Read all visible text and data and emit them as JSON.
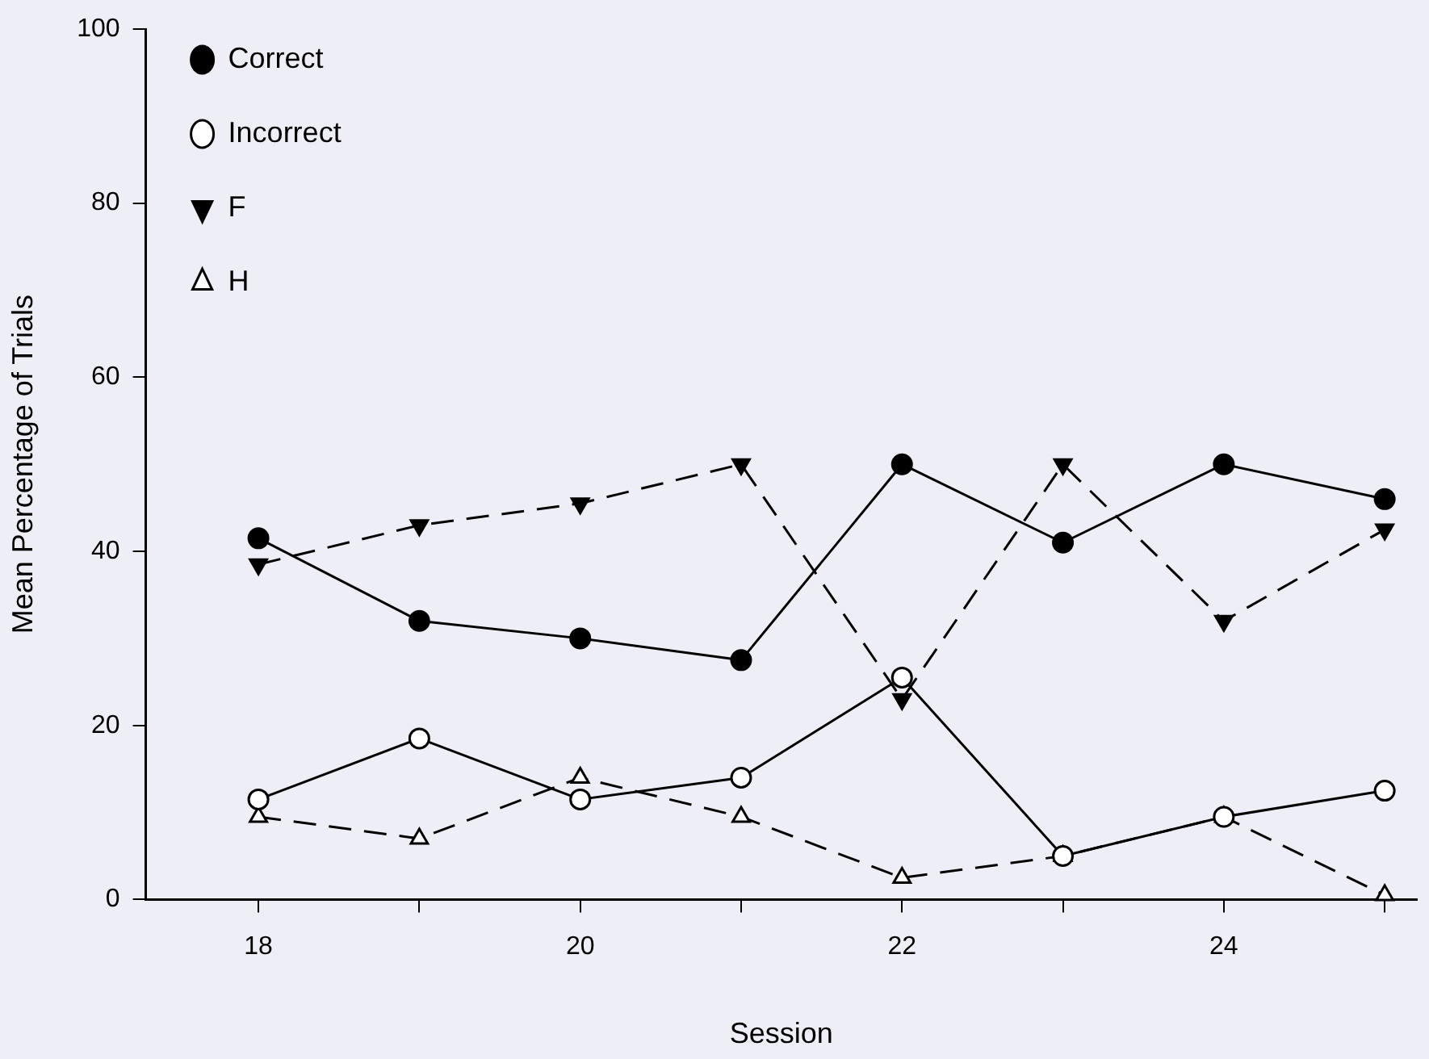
{
  "chart_data": {
    "type": "line",
    "xlabel": "Session",
    "ylabel": "Mean Percentage of Trials",
    "x": [
      18,
      19,
      20,
      21,
      22,
      23,
      24,
      25
    ],
    "series": [
      {
        "name": "Correct",
        "color": "#000000",
        "marker": "circle",
        "line_style": "solid",
        "values": [
          41.5,
          32,
          30,
          27.5,
          50,
          41,
          50,
          46
        ]
      },
      {
        "name": "Incorrect",
        "color": "#000000",
        "colors": [
          "#ffffff",
          "#ffffff",
          "#ffffff",
          "#ffffff",
          "#ffffff",
          "#ffffff",
          "#ffffff",
          "#ffffff"
        ],
        "marker": "circle",
        "line_style": "solid",
        "values": [
          11.5,
          18.5,
          11.5,
          14,
          25.5,
          5,
          9.5,
          12.5
        ]
      },
      {
        "name": "F",
        "color": "#000000",
        "marker": "triangle_down",
        "line_style": "dashed",
        "values": [
          38.5,
          43,
          45.5,
          50,
          23,
          50,
          32,
          42.5
        ]
      },
      {
        "name": "H",
        "color": "#000000",
        "colors": [
          "#ffffff",
          "#ffffff",
          "#ffffff",
          "#ffffff",
          "#ffffff",
          "#ffffff",
          "#ffffff",
          "#ffffff"
        ],
        "marker": "triangle",
        "line_style": "dashed",
        "values": [
          9.5,
          7,
          14,
          9.5,
          2.5,
          5,
          9.5,
          0.5
        ]
      }
    ],
    "xlim": [
      17.3,
      25.2
    ],
    "xticks": [
      {
        "value": 18,
        "label": "18"
      },
      {
        "value": 19,
        "label": null
      },
      {
        "value": 20,
        "label": "20"
      },
      {
        "value": 21,
        "label": null
      },
      {
        "value": 22,
        "label": "22"
      },
      {
        "value": 23,
        "label": null
      },
      {
        "value": 24,
        "label": "24"
      },
      {
        "value": 25,
        "label": null
      }
    ],
    "ylim": [
      0,
      100
    ],
    "yticks": [
      0,
      20,
      40,
      60,
      80,
      100
    ],
    "grid": false,
    "legend": "top left"
  }
}
